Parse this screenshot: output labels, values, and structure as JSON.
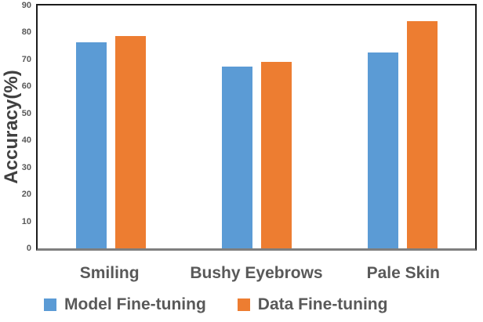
{
  "chart_data": {
    "type": "bar",
    "title": "",
    "categories": [
      "Smiling",
      "Bushy Eyebrows",
      "Pale Skin"
    ],
    "series": [
      {
        "name": "Model Fine-tuning",
        "color": "#5B9BD5",
        "values": [
          76.5,
          67.5,
          72.5
        ]
      },
      {
        "name": "Data Fine-tuning",
        "color": "#ED7D31",
        "values": [
          78.8,
          69.0,
          84.3
        ]
      }
    ],
    "xlabel": "",
    "ylabel": "Accuracy(%)",
    "ylim": [
      0,
      90
    ],
    "y_ticks": [
      0,
      10,
      20,
      30,
      40,
      50,
      60,
      70,
      80,
      90
    ],
    "grid": false,
    "legend_position": "bottom",
    "plot_border_color": "#1c1c1c",
    "baseline_color": "#7f7f7f",
    "text_color": "#595959",
    "axis_title_color": "#404040"
  }
}
